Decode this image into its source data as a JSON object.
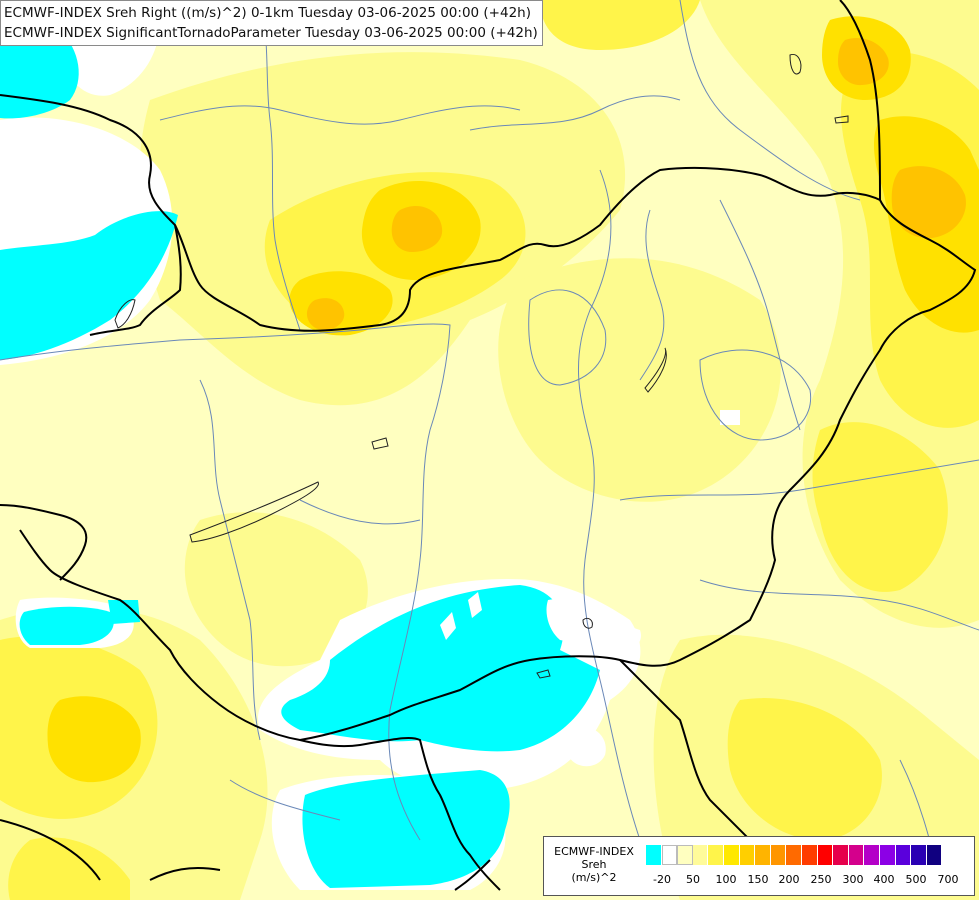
{
  "map": {
    "title_lines": [
      "ECMWF-INDEX Sreh Right ((m/s)^2) 0-1km Tuesday 03-06-2025 00:00 (+42h)",
      "ECMWF-INDEX SignificantTornadoParameter Tuesday 03-06-2025 00:00 (+42h)"
    ],
    "colors": {
      "negative": "#00ffff",
      "zero": "#ffffff",
      "pale": "#ffffc0",
      "light": "#fdfb8f",
      "mid": "#fff44a",
      "strong": "#ffe100",
      "orange": "#ffc300",
      "border": "#000000",
      "river": "#6a88b8"
    }
  },
  "legend": {
    "title_lines": [
      "ECMWF-INDEX",
      "Sreh",
      "(m/s)^2"
    ],
    "colors": [
      "#00ffff",
      "#ffffff",
      "#ffffc0",
      "#fffb9a",
      "#fff44a",
      "#ffe800",
      "#ffcf00",
      "#ffb400",
      "#ff9600",
      "#ff6a00",
      "#ff3c00",
      "#ff0000",
      "#e6004c",
      "#d4008c",
      "#b400c8",
      "#8c00e6",
      "#5a00dc",
      "#2a00b4",
      "#100080"
    ],
    "ticks": [
      "-20",
      "50",
      "100",
      "150",
      "200",
      "250",
      "300",
      "400",
      "500",
      "700"
    ]
  }
}
